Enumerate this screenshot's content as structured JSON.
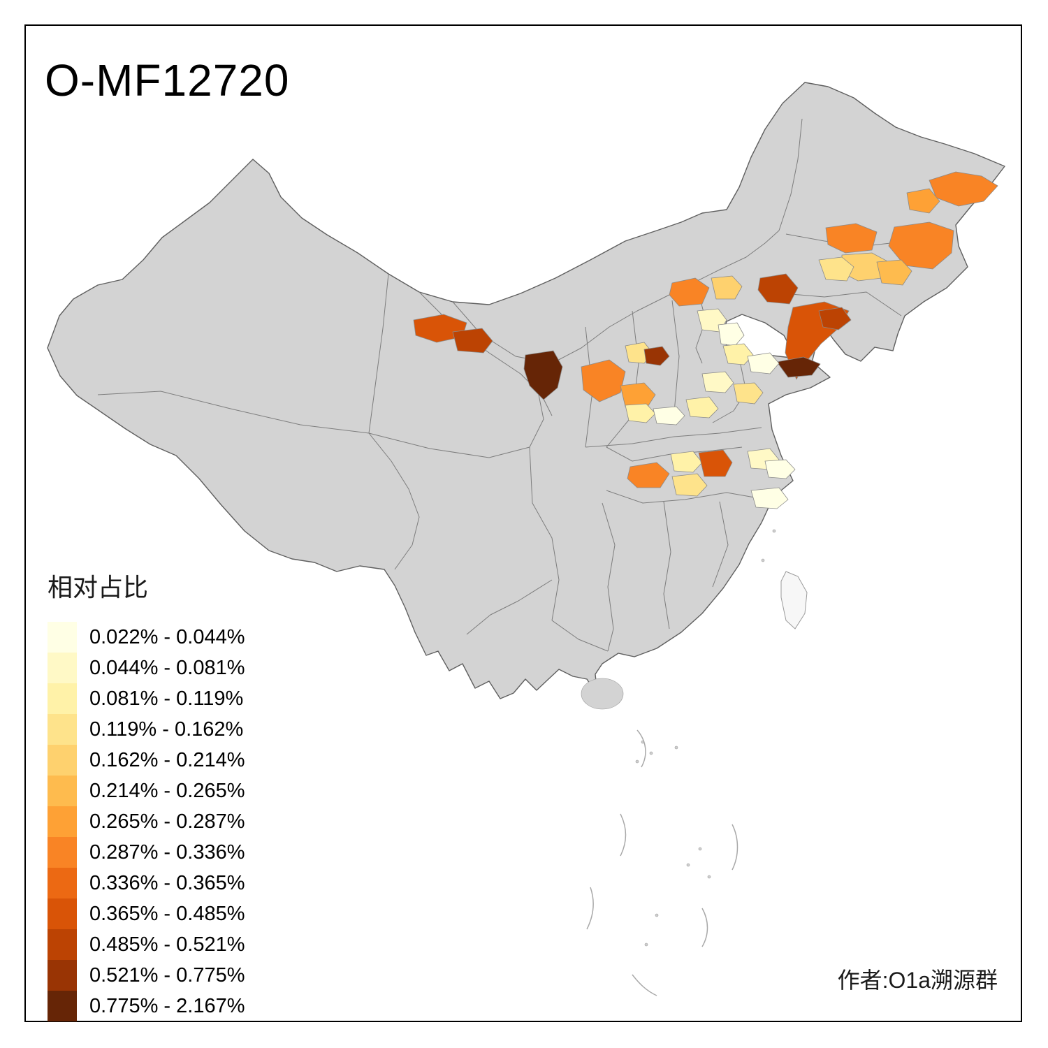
{
  "title": "O-MF12720",
  "attribution": "作者:O1a溯源群",
  "legend": {
    "title": "相对占比",
    "classes": [
      {
        "label": "0.022% - 0.044%",
        "color": "#FFFFE5"
      },
      {
        "label": "0.044% - 0.081%",
        "color": "#FFF9C6"
      },
      {
        "label": "0.081% - 0.119%",
        "color": "#FFF2A8"
      },
      {
        "label": "0.119% - 0.162%",
        "color": "#FEE38B"
      },
      {
        "label": "0.162% - 0.214%",
        "color": "#FED16E"
      },
      {
        "label": "0.214% - 0.265%",
        "color": "#FEBB4E"
      },
      {
        "label": "0.265% - 0.287%",
        "color": "#FEA135"
      },
      {
        "label": "0.287% - 0.336%",
        "color": "#F98425"
      },
      {
        "label": "0.336% - 0.365%",
        "color": "#EC6913"
      },
      {
        "label": "0.365% - 0.485%",
        "color": "#D95407"
      },
      {
        "label": "0.485% - 0.521%",
        "color": "#BC4303"
      },
      {
        "label": "0.521% - 0.775%",
        "color": "#993404"
      },
      {
        "label": "0.775% - 2.167%",
        "color": "#662506"
      }
    ]
  },
  "map": {
    "land_color": "#D3D3D3",
    "province_border_color": "#7D7D7D",
    "outline_color": "#5F5F5F",
    "sea_color": "#FFFFFF"
  }
}
